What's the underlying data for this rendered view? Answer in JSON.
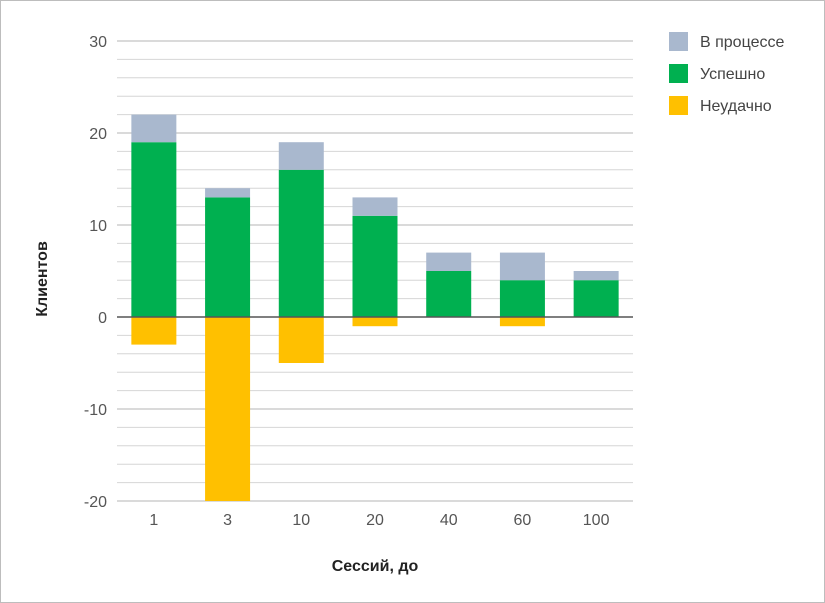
{
  "chart_data": {
    "type": "bar",
    "stacked": true,
    "xlabel": "Сессий, до",
    "ylabel": "Клиентов",
    "categories": [
      "1",
      "3",
      "10",
      "20",
      "40",
      "60",
      "100"
    ],
    "series": [
      {
        "name": "Неудачно",
        "color": "#FFC000",
        "values": [
          -3,
          -20,
          -5,
          -1,
          0,
          -1,
          0
        ]
      },
      {
        "name": "Успешно",
        "color": "#00B050",
        "values": [
          19,
          13,
          16,
          11,
          5,
          4,
          4
        ]
      },
      {
        "name": "В процессе",
        "color": "#A9B8CE",
        "values": [
          3,
          1,
          3,
          2,
          2,
          3,
          1
        ]
      }
    ],
    "legend_order": [
      "В процессе",
      "Успешно",
      "Неудачно"
    ],
    "ylim": [
      -20,
      30
    ],
    "yticks": [
      -20,
      -10,
      0,
      10,
      20,
      30
    ],
    "minor_grid_step": 2,
    "grid": true,
    "legend_position": "top-right"
  }
}
